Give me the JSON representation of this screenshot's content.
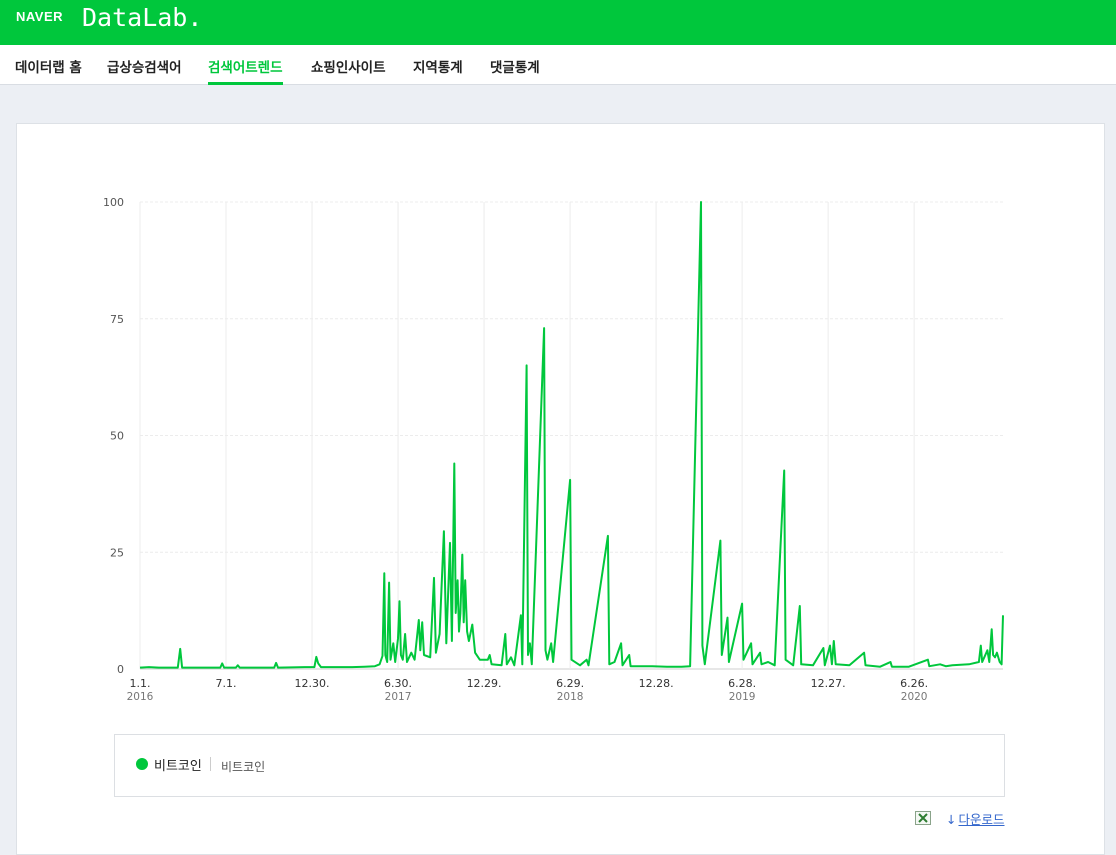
{
  "header": {
    "brand": "NAVER",
    "product": "DataLab."
  },
  "nav": {
    "items": [
      {
        "label": "데이터랩 홈"
      },
      {
        "label": "급상승검색어"
      },
      {
        "label": "검색어트렌드",
        "active": true
      },
      {
        "label": "쇼핑인사이트"
      },
      {
        "label": "지역통계"
      },
      {
        "label": "댓글통계"
      }
    ]
  },
  "legend": {
    "name": "비트코인",
    "keyword": "비트코인"
  },
  "download": {
    "label": "다운로드",
    "icon": "excel-icon"
  },
  "colors": {
    "brand": "#00c73c",
    "line": "#00c73c",
    "grid": "#e8e8e8"
  },
  "chart_data": {
    "type": "line",
    "x_start": "2016-01-01",
    "x_end": "2020-12-31",
    "ylim": [
      0,
      100
    ],
    "yticks": [
      0,
      25,
      50,
      75,
      100
    ],
    "xticks": [
      {
        "date": "2016-01-01",
        "label": "1.1.",
        "year": "2016"
      },
      {
        "date": "2016-07-01",
        "label": "7.1.",
        "year": ""
      },
      {
        "date": "2016-12-30",
        "label": "12.30.",
        "year": ""
      },
      {
        "date": "2017-06-30",
        "label": "6.30.",
        "year": "2017"
      },
      {
        "date": "2017-12-29",
        "label": "12.29.",
        "year": ""
      },
      {
        "date": "2018-06-29",
        "label": "6.29.",
        "year": "2018"
      },
      {
        "date": "2018-12-28",
        "label": "12.28.",
        "year": ""
      },
      {
        "date": "2019-06-28",
        "label": "6.28.",
        "year": "2019"
      },
      {
        "date": "2019-12-27",
        "label": "12.27.",
        "year": ""
      },
      {
        "date": "2020-06-26",
        "label": "6.26.",
        "year": "2020"
      }
    ],
    "grid": true,
    "series": [
      {
        "name": "비트코인",
        "points": [
          [
            "2016-01-01",
            0.3
          ],
          [
            "2016-01-20",
            0.4
          ],
          [
            "2016-02-10",
            0.3
          ],
          [
            "2016-03-01",
            0.3
          ],
          [
            "2016-03-21",
            0.3
          ],
          [
            "2016-03-26",
            4.3
          ],
          [
            "2016-03-30",
            0.3
          ],
          [
            "2016-04-30",
            0.3
          ],
          [
            "2016-05-30",
            0.3
          ],
          [
            "2016-06-19",
            0.3
          ],
          [
            "2016-06-23",
            1.2
          ],
          [
            "2016-06-27",
            0.3
          ],
          [
            "2016-07-22",
            0.3
          ],
          [
            "2016-07-26",
            0.8
          ],
          [
            "2016-07-30",
            0.3
          ],
          [
            "2016-09-03",
            0.3
          ],
          [
            "2016-10-11",
            0.3
          ],
          [
            "2016-10-15",
            1.3
          ],
          [
            "2016-10-19",
            0.3
          ],
          [
            "2016-12-15",
            0.4
          ],
          [
            "2017-01-04",
            0.4
          ],
          [
            "2017-01-08",
            2.6
          ],
          [
            "2017-01-12",
            1.2
          ],
          [
            "2017-01-18",
            0.4
          ],
          [
            "2017-02-20",
            0.4
          ],
          [
            "2017-03-25",
            0.4
          ],
          [
            "2017-04-20",
            0.5
          ],
          [
            "2017-05-12",
            0.6
          ],
          [
            "2017-05-22",
            1.0
          ],
          [
            "2017-05-28",
            2.8
          ],
          [
            "2017-06-01",
            20.5
          ],
          [
            "2017-06-03",
            3.0
          ],
          [
            "2017-06-07",
            1.5
          ],
          [
            "2017-06-11",
            18.5
          ],
          [
            "2017-06-14",
            2.0
          ],
          [
            "2017-06-20",
            5.5
          ],
          [
            "2017-06-24",
            1.5
          ],
          [
            "2017-06-30",
            6.5
          ],
          [
            "2017-07-03",
            14.5
          ],
          [
            "2017-07-06",
            3.0
          ],
          [
            "2017-07-10",
            2.0
          ],
          [
            "2017-07-15",
            7.5
          ],
          [
            "2017-07-19",
            1.5
          ],
          [
            "2017-07-28",
            3.5
          ],
          [
            "2017-08-04",
            2.0
          ],
          [
            "2017-08-13",
            10.5
          ],
          [
            "2017-08-16",
            4.0
          ],
          [
            "2017-08-20",
            10.0
          ],
          [
            "2017-08-24",
            3.0
          ],
          [
            "2017-09-06",
            2.5
          ],
          [
            "2017-09-14",
            19.5
          ],
          [
            "2017-09-18",
            3.5
          ],
          [
            "2017-09-26",
            7.5
          ],
          [
            "2017-10-05",
            29.5
          ],
          [
            "2017-10-10",
            5.5
          ],
          [
            "2017-10-18",
            27.0
          ],
          [
            "2017-10-22",
            6.0
          ],
          [
            "2017-10-27",
            44.0
          ],
          [
            "2017-10-30",
            12.0
          ],
          [
            "2017-11-03",
            19.0
          ],
          [
            "2017-11-06",
            8.0
          ],
          [
            "2017-11-09",
            12.0
          ],
          [
            "2017-11-13",
            24.5
          ],
          [
            "2017-11-16",
            10.0
          ],
          [
            "2017-11-19",
            19.0
          ],
          [
            "2017-11-23",
            8.0
          ],
          [
            "2017-11-27",
            6.0
          ],
          [
            "2017-12-04",
            9.5
          ],
          [
            "2017-12-10",
            3.5
          ],
          [
            "2017-12-20",
            2.0
          ],
          [
            "2018-01-06",
            2.0
          ],
          [
            "2018-01-10",
            3.0
          ],
          [
            "2018-01-14",
            1.0
          ],
          [
            "2018-02-04",
            0.8
          ],
          [
            "2018-02-12",
            7.5
          ],
          [
            "2018-02-15",
            1.0
          ],
          [
            "2018-02-24",
            2.5
          ],
          [
            "2018-03-03",
            0.8
          ],
          [
            "2018-03-17",
            11.5
          ],
          [
            "2018-03-20",
            1.0
          ],
          [
            "2018-03-29",
            65.0
          ],
          [
            "2018-04-01",
            3.0
          ],
          [
            "2018-04-05",
            5.5
          ],
          [
            "2018-04-09",
            1.0
          ],
          [
            "2018-05-05",
            73.0
          ],
          [
            "2018-05-08",
            4.0
          ],
          [
            "2018-05-12",
            2.0
          ],
          [
            "2018-05-20",
            5.5
          ],
          [
            "2018-05-24",
            1.5
          ],
          [
            "2018-06-29",
            40.5
          ],
          [
            "2018-07-02",
            2.0
          ],
          [
            "2018-07-20",
            0.8
          ],
          [
            "2018-08-03",
            2.0
          ],
          [
            "2018-08-07",
            0.8
          ],
          [
            "2018-09-17",
            28.5
          ],
          [
            "2018-09-20",
            1.0
          ],
          [
            "2018-10-01",
            1.5
          ],
          [
            "2018-10-15",
            5.5
          ],
          [
            "2018-10-18",
            0.8
          ],
          [
            "2018-11-01",
            3.0
          ],
          [
            "2018-11-04",
            0.6
          ],
          [
            "2018-12-20",
            0.6
          ],
          [
            "2019-01-20",
            0.5
          ],
          [
            "2019-02-20",
            0.5
          ],
          [
            "2019-03-10",
            0.6
          ],
          [
            "2019-04-02",
            100
          ],
          [
            "2019-04-05",
            5.0
          ],
          [
            "2019-04-10",
            1.0
          ],
          [
            "2019-05-13",
            27.5
          ],
          [
            "2019-05-16",
            3.0
          ],
          [
            "2019-05-28",
            11.0
          ],
          [
            "2019-05-31",
            1.5
          ],
          [
            "2019-06-28",
            14.0
          ],
          [
            "2019-07-01",
            2.0
          ],
          [
            "2019-07-17",
            5.5
          ],
          [
            "2019-07-20",
            1.0
          ],
          [
            "2019-08-05",
            3.5
          ],
          [
            "2019-08-08",
            1.0
          ],
          [
            "2019-08-22",
            1.5
          ],
          [
            "2019-09-05",
            0.8
          ],
          [
            "2019-09-25",
            42.5
          ],
          [
            "2019-09-28",
            2.0
          ],
          [
            "2019-10-14",
            0.8
          ],
          [
            "2019-10-28",
            13.5
          ],
          [
            "2019-10-31",
            1.0
          ],
          [
            "2019-11-25",
            0.8
          ],
          [
            "2019-12-17",
            4.5
          ],
          [
            "2019-12-20",
            0.8
          ],
          [
            "2019-12-31",
            5.0
          ],
          [
            "2020-01-04",
            1.0
          ],
          [
            "2020-01-08",
            6.0
          ],
          [
            "2020-01-12",
            1.0
          ],
          [
            "2020-02-10",
            0.8
          ],
          [
            "2020-03-12",
            3.5
          ],
          [
            "2020-03-15",
            0.8
          ],
          [
            "2020-04-15",
            0.5
          ],
          [
            "2020-05-07",
            1.5
          ],
          [
            "2020-05-10",
            0.5
          ],
          [
            "2020-06-15",
            0.5
          ],
          [
            "2020-07-25",
            2.0
          ],
          [
            "2020-07-28",
            0.6
          ],
          [
            "2020-08-20",
            1.0
          ],
          [
            "2020-09-01",
            0.6
          ],
          [
            "2020-09-15",
            0.8
          ],
          [
            "2020-10-20",
            1.0
          ],
          [
            "2020-11-10",
            1.5
          ],
          [
            "2020-11-14",
            5.0
          ],
          [
            "2020-11-17",
            1.5
          ],
          [
            "2020-11-28",
            4.0
          ],
          [
            "2020-12-02",
            1.5
          ],
          [
            "2020-12-07",
            8.5
          ],
          [
            "2020-12-10",
            3.0
          ],
          [
            "2020-12-14",
            2.5
          ],
          [
            "2020-12-18",
            3.5
          ],
          [
            "2020-12-24",
            1.5
          ],
          [
            "2020-12-28",
            1.0
          ],
          [
            "2020-12-31",
            11.5
          ]
        ]
      }
    ]
  }
}
